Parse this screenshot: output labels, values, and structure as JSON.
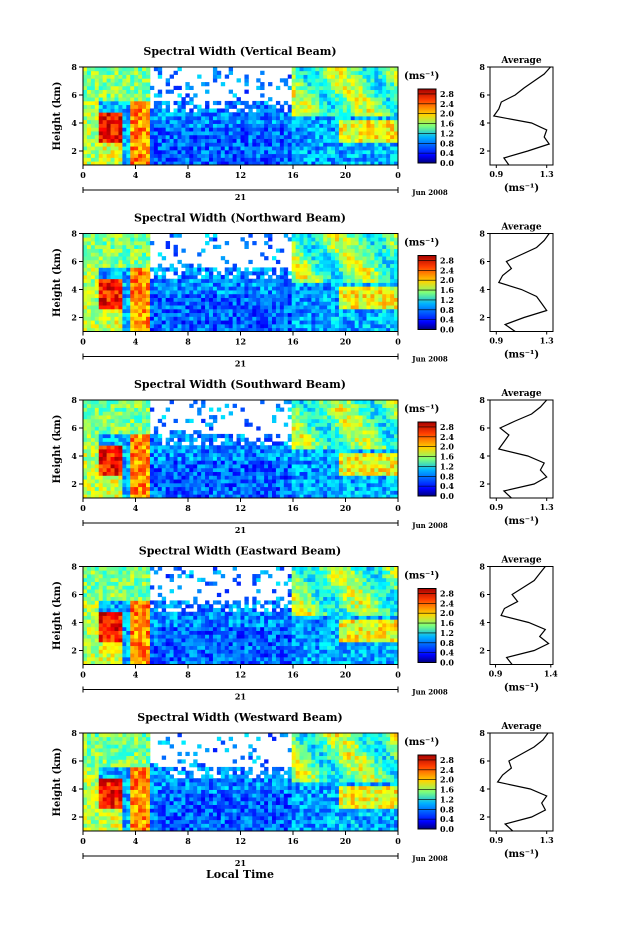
{
  "chart_data": {
    "type": "heatmap",
    "x_axis": {
      "ticks": [
        "0",
        "4",
        "8",
        "12",
        "16",
        "20",
        "0"
      ],
      "tick_values": [
        0,
        4,
        8,
        12,
        16,
        20,
        24
      ],
      "xlim": [
        0,
        24
      ],
      "day_label": "21",
      "date_label": "Jun 2008",
      "title": "Local Time"
    },
    "y_axis": {
      "label": "Height (km)",
      "ylim": [
        1,
        8
      ],
      "ticks": [
        "2",
        "4",
        "6",
        "8"
      ],
      "tick_values": [
        2,
        4,
        6,
        8
      ]
    },
    "colorbar": {
      "unit": "(ms⁻¹)",
      "ticks": [
        "0.0",
        "0.4",
        "0.8",
        "1.2",
        "1.6",
        "2.0",
        "2.4",
        "2.8"
      ],
      "tick_values": [
        0.0,
        0.4,
        0.8,
        1.2,
        1.6,
        2.0,
        2.4,
        2.8
      ],
      "range": [
        0,
        3.0
      ]
    },
    "average_profile": {
      "title": "Average",
      "xlabel": "(ms⁻¹)",
      "heights": [
        1.0,
        1.5,
        2.0,
        2.5,
        3.0,
        3.5,
        4.0,
        4.5,
        5.0,
        5.5,
        6.0,
        6.5,
        7.0,
        7.5,
        8.0
      ]
    },
    "panels": [
      {
        "title": "Spectral Width (Vertical Beam)",
        "avg_xticks": [
          "0.9",
          "1.3"
        ],
        "avg_xlim": [
          0.85,
          1.35
        ],
        "avg_values": [
          1.0,
          0.96,
          1.15,
          1.32,
          1.28,
          1.3,
          1.18,
          0.88,
          0.92,
          0.94,
          1.05,
          1.12,
          1.2,
          1.28,
          1.33
        ]
      },
      {
        "title": "Spectral Width (Northward Beam)",
        "avg_xticks": [
          "0.9",
          "1.3"
        ],
        "avg_xlim": [
          0.85,
          1.35
        ],
        "avg_values": [
          1.05,
          0.97,
          1.12,
          1.3,
          1.26,
          1.22,
          1.1,
          0.92,
          0.95,
          1.02,
          0.98,
          1.1,
          1.22,
          1.28,
          1.32
        ]
      },
      {
        "title": "Spectral Width (Southward Beam)",
        "avg_xticks": [
          "0.9",
          "1.3"
        ],
        "avg_xlim": [
          0.85,
          1.35
        ],
        "avg_values": [
          1.02,
          0.96,
          1.2,
          1.3,
          1.25,
          1.28,
          1.15,
          0.92,
          0.96,
          1.0,
          0.93,
          1.05,
          1.18,
          1.25,
          1.3
        ]
      },
      {
        "title": "Spectral Width (Eastward Beam)",
        "avg_xticks": [
          "0.9",
          "1.4"
        ],
        "avg_xlim": [
          0.85,
          1.42
        ],
        "avg_values": [
          1.05,
          1.0,
          1.25,
          1.38,
          1.3,
          1.35,
          1.2,
          0.95,
          0.98,
          1.1,
          1.05,
          1.15,
          1.25,
          1.3,
          1.35
        ]
      },
      {
        "title": "Spectral Width (Westward Beam)",
        "avg_xticks": [
          "0.9",
          "1.3"
        ],
        "avg_xlim": [
          0.85,
          1.35
        ],
        "avg_values": [
          1.03,
          0.97,
          1.18,
          1.29,
          1.26,
          1.3,
          1.17,
          0.91,
          0.95,
          1.02,
          1.0,
          1.1,
          1.2,
          1.27,
          1.31
        ]
      }
    ]
  }
}
